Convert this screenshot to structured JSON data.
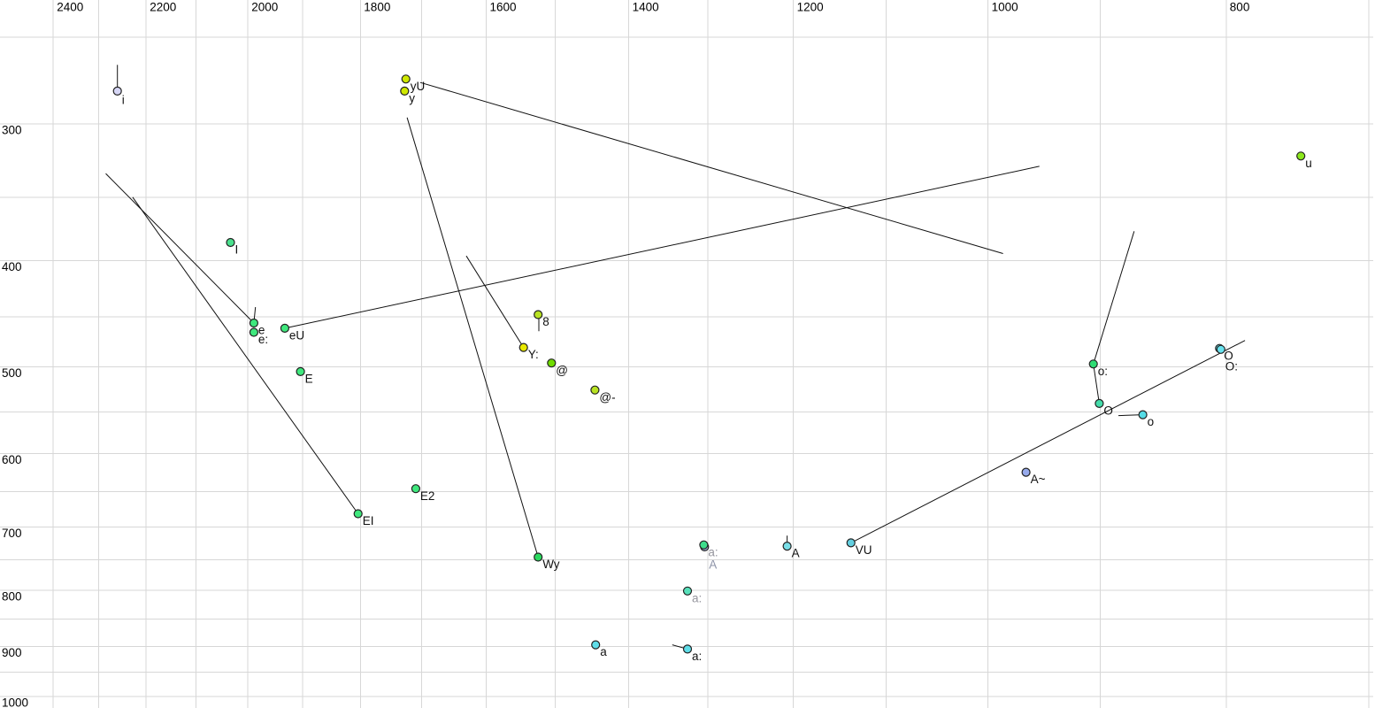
{
  "chart_data": {
    "type": "scatter",
    "title": "",
    "x_axis": {
      "position": "top",
      "scale": "log",
      "direction": "reversed",
      "tick_labels": [
        2400,
        2200,
        2000,
        1800,
        1600,
        1400,
        1200,
        1000,
        800
      ],
      "minor_gridline_min": 700,
      "minor_gridline_max": 2400,
      "minor_gridline_step": 100
    },
    "y_axis": {
      "position": "left",
      "scale": "log",
      "direction": "downward",
      "tick_labels": [
        300,
        400,
        500,
        600,
        700,
        800,
        900,
        1000
      ],
      "minor_gridline_min": 250,
      "minor_gridline_max": 1000,
      "minor_gridline_step": 50
    },
    "grid_color": "#d7d7d7",
    "line_color": "#111111",
    "point_outline_color": "#222222",
    "points": [
      {
        "label": "i",
        "f2": 2260,
        "f1": 280,
        "fill": "#d6d6f5",
        "ldy": 5
      },
      {
        "label": "yU",
        "f2": 1725,
        "f1": 273,
        "fill": "#cfe800"
      },
      {
        "label": "y",
        "f2": 1727,
        "f1": 280,
        "fill": "#cfe800"
      },
      {
        "label": "I",
        "f2": 2033,
        "f1": 385,
        "fill": "#4ae08d"
      },
      {
        "label": "e",
        "f2": 1989,
        "f1": 456,
        "fill": "#3fe87d"
      },
      {
        "label": "e:",
        "f2": 1989,
        "f1": 465,
        "fill": "#3fe87d"
      },
      {
        "label": "eU",
        "f2": 1932,
        "f1": 461,
        "fill": "#3fe87d"
      },
      {
        "label": "E",
        "f2": 1904,
        "f1": 505,
        "fill": "#3fe87d"
      },
      {
        "label": "8",
        "f2": 1524,
        "f1": 448,
        "fill": "#b8e222"
      },
      {
        "label": "Y:",
        "f2": 1545,
        "f1": 480,
        "fill": "#e8e800"
      },
      {
        "label": "@",
        "f2": 1505,
        "f1": 496,
        "fill": "#6fdc00"
      },
      {
        "label": "@-",
        "f2": 1445,
        "f1": 525,
        "fill": "#b8e222"
      },
      {
        "label": "E2",
        "f2": 1709,
        "f1": 646,
        "fill": "#3fe87d"
      },
      {
        "label": "EI",
        "f2": 1804,
        "f1": 681,
        "fill": "#3fe87d"
      },
      {
        "label": "Wy",
        "f2": 1524,
        "f1": 746,
        "fill": "#2bd95f"
      },
      {
        "label": "A",
        "f2": 1304,
        "f1": 730,
        "fill": "#aab4e6",
        "label_color": "#8d93a8",
        "ldy": 15
      },
      {
        "label": "a:",
        "f2": 1305,
        "f1": 727,
        "fill": "#3edd8c",
        "label_color": "#96969e"
      },
      {
        "label": "a:",
        "f2": 1325,
        "f1": 801,
        "fill": "#57e0ba",
        "label_color": "#96969e"
      },
      {
        "label": "a",
        "f2": 1444,
        "f1": 897,
        "fill": "#5fdde8"
      },
      {
        "label": "a:",
        "f2": 1325,
        "f1": 905,
        "fill": "#5fdde8"
      },
      {
        "label": "A",
        "f2": 1207,
        "f1": 729,
        "fill": "#79dfe8"
      },
      {
        "label": "VU",
        "f2": 1137,
        "f1": 724,
        "fill": "#63cfe0"
      },
      {
        "label": "A~",
        "f2": 965,
        "f1": 624,
        "fill": "#97aaec"
      },
      {
        "label": "o:",
        "f2": 906,
        "f1": 497,
        "fill": "#2fdc74"
      },
      {
        "label": "O",
        "f2": 901,
        "f1": 540,
        "fill": "#44dcaa"
      },
      {
        "label": "o",
        "f2": 865,
        "f1": 553,
        "fill": "#55dce6"
      },
      {
        "label": "O",
        "f2": 805,
        "f1": 481,
        "fill": "#68e2ee"
      },
      {
        "label": "O:",
        "f2": 804,
        "f1": 482,
        "fill": "#68e2ee",
        "ldy": 14
      },
      {
        "label": "u",
        "f2": 746,
        "f1": 321,
        "fill": "#8ce81c"
      }
    ],
    "lines": [
      {
        "a": [
          2260,
          265
        ],
        "b": [
          2260,
          280
        ]
      },
      {
        "a": [
          1702,
          275
        ],
        "b": [
          986,
          394
        ]
      },
      {
        "a": [
          1932,
          461
        ],
        "b": [
          953,
          328
        ]
      },
      {
        "a": [
          2285,
          333
        ],
        "b": [
          1989,
          456
        ]
      },
      {
        "a": [
          2228,
          350
        ],
        "b": [
          1804,
          681
        ]
      },
      {
        "a": [
          1986,
          441
        ],
        "b": [
          1989,
          456
        ]
      },
      {
        "a": [
          1630,
          396
        ],
        "b": [
          1545,
          480
        ]
      },
      {
        "a": [
          1723,
          296
        ],
        "b": [
          1524,
          746
        ]
      },
      {
        "a": [
          1523,
          450
        ],
        "b": [
          1523,
          464
        ]
      },
      {
        "a": [
          1207,
          713
        ],
        "b": [
          1207,
          729
        ]
      },
      {
        "a": [
          1344,
          897
        ],
        "b": [
          1325,
          905
        ]
      },
      {
        "a": [
          1137,
          724
        ],
        "b": [
          786,
          473
        ]
      },
      {
        "a": [
          872,
          376
        ],
        "b": [
          906,
          497
        ]
      },
      {
        "a": [
          906,
          497
        ],
        "b": [
          901,
          540
        ]
      },
      {
        "a": [
          885,
          554
        ],
        "b": [
          865,
          553
        ]
      }
    ]
  }
}
